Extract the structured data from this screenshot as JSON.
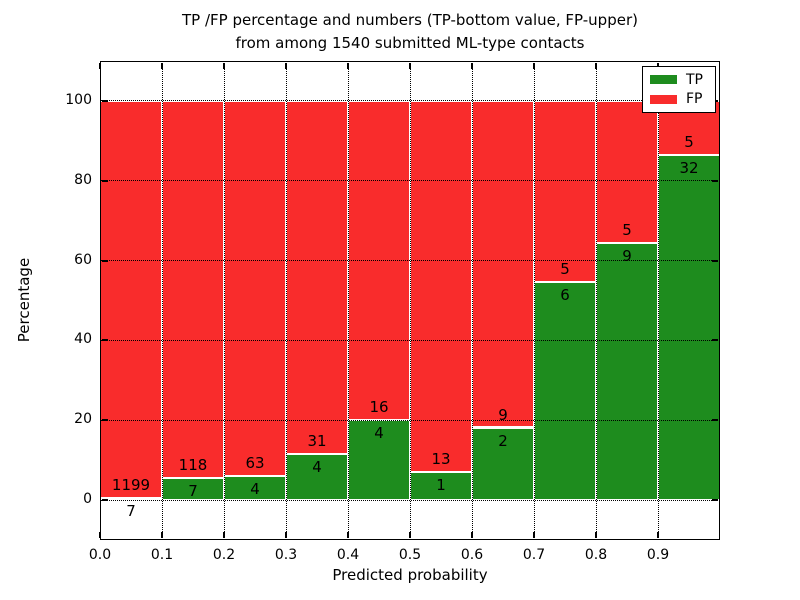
{
  "figure": {
    "title_line1": "TP /FP percentage and numbers (TP-bottom value, FP-upper)",
    "title_line2": "from among 1540 submitted ML-type contacts",
    "xlabel": "Predicted probability",
    "ylabel": "Percentage"
  },
  "legend": {
    "position": "upper right",
    "items": [
      {
        "label": "TP",
        "color": "#1e8c1e"
      },
      {
        "label": "FP",
        "color": "#f92c2c"
      }
    ]
  },
  "chart_data": {
    "type": "bar",
    "stacked": true,
    "normalized": "each bin scaled to 100%",
    "title": "TP /FP percentage and numbers (TP-bottom value, FP-upper) from among 1540 submitted ML-type contacts",
    "xlabel": "Predicted probability",
    "ylabel": "Percentage",
    "xlim": [
      0.0,
      1.0
    ],
    "ylim": [
      -10,
      110
    ],
    "grid": "dotted",
    "x_tick_labels": [
      "0.0",
      "0.1",
      "0.2",
      "0.3",
      "0.4",
      "0.5",
      "0.6",
      "0.7",
      "0.8",
      "0.9"
    ],
    "y_tick_values": [
      0,
      20,
      40,
      60,
      80,
      100
    ],
    "bin_edges": [
      0.0,
      0.1,
      0.2,
      0.3,
      0.4,
      0.5,
      0.6,
      0.7,
      0.8,
      0.9,
      1.0
    ],
    "series": [
      {
        "name": "TP",
        "color": "#1e8c1e",
        "counts": [
          7,
          7,
          4,
          4,
          4,
          1,
          2,
          6,
          9,
          32
        ]
      },
      {
        "name": "FP",
        "color": "#f92c2c",
        "counts": [
          1199,
          118,
          63,
          31,
          16,
          13,
          9,
          5,
          5,
          5
        ]
      }
    ],
    "tp_percent_per_bin": [
      0.58,
      5.6,
      5.97,
      11.43,
      20.0,
      7.14,
      18.18,
      54.55,
      64.29,
      86.49
    ],
    "total_contacts": 1540
  }
}
